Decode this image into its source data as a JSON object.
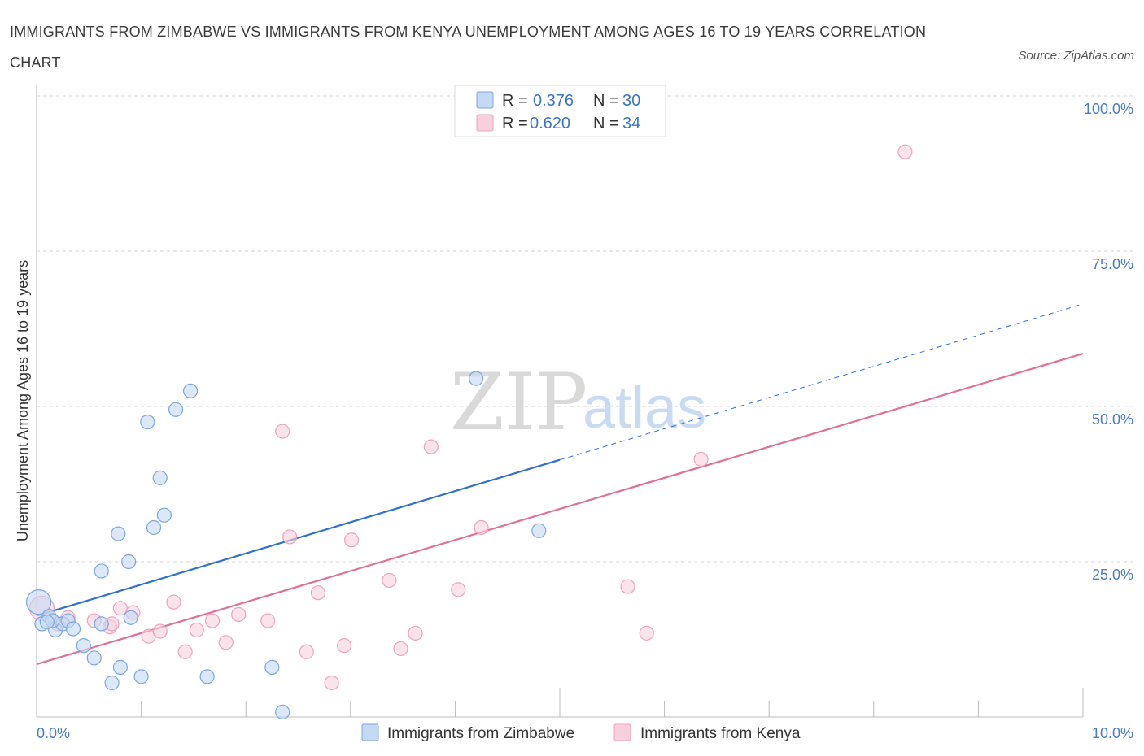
{
  "chart_data": {
    "type": "scatter",
    "title": "IMMIGRANTS FROM ZIMBABWE VS IMMIGRANTS FROM KENYA UNEMPLOYMENT AMONG AGES 16 TO 19 YEARS CORRELATION CHART",
    "source": "Source: ZipAtlas.com",
    "xlabel": "",
    "ylabel": "Unemployment Among Ages 16 to 19 years",
    "xlim": [
      0,
      10
    ],
    "ylim": [
      0,
      100
    ],
    "x_tick_labels": {
      "left": "0.0%",
      "right": "10.0%"
    },
    "y_ticks": [
      {
        "value": 100,
        "label": "100.0%"
      },
      {
        "value": 75,
        "label": "75.0%"
      },
      {
        "value": 50,
        "label": "50.0%"
      },
      {
        "value": 25,
        "label": "25.0%"
      }
    ],
    "legend_top": [
      {
        "series": "Immigrants from Zimbabwe",
        "r_label": "R =",
        "r_value": "0.376",
        "n_label": "N =",
        "n_value": "30"
      },
      {
        "series": "Immigrants from Kenya",
        "r_label": "R =",
        "r_value": "0.620",
        "n_label": "N =",
        "n_value": "34"
      }
    ],
    "series": [
      {
        "name": "Immigrants from Zimbabwe",
        "color": "#7aa7e0",
        "fill": "#c5d9f3",
        "trend": {
          "x0": 0.0,
          "y0": 16.3,
          "x1": 10.0,
          "y1": 66.5,
          "solid_until_x": 5.0,
          "color": "#2f6fd0"
        },
        "points": [
          [
            0.02,
            18.5
          ],
          [
            0.05,
            15.0
          ],
          [
            0.12,
            16.2
          ],
          [
            0.18,
            14.0
          ],
          [
            0.25,
            15.0
          ],
          [
            0.3,
            15.5
          ],
          [
            0.35,
            14.2
          ],
          [
            0.45,
            11.5
          ],
          [
            0.55,
            9.5
          ],
          [
            0.62,
            15.0
          ],
          [
            0.72,
            5.5
          ],
          [
            0.78,
            29.5
          ],
          [
            0.8,
            8.0
          ],
          [
            0.88,
            25.0
          ],
          [
            0.9,
            16.0
          ],
          [
            1.0,
            6.5
          ],
          [
            1.06,
            47.5
          ],
          [
            1.12,
            30.5
          ],
          [
            1.18,
            38.5
          ],
          [
            1.22,
            32.5
          ],
          [
            1.33,
            49.5
          ],
          [
            1.47,
            52.5
          ],
          [
            1.63,
            6.5
          ],
          [
            2.25,
            8.0
          ],
          [
            2.35,
            0.8
          ],
          [
            4.2,
            54.5
          ],
          [
            4.8,
            30.0
          ],
          [
            0.62,
            23.5
          ],
          [
            0.15,
            15.5
          ],
          [
            0.1,
            15.3
          ]
        ]
      },
      {
        "name": "Immigrants from Kenya",
        "color": "#eba3bb",
        "fill": "#f8d0dd",
        "trend": {
          "x0": 0.0,
          "y0": 8.5,
          "x1": 10.0,
          "y1": 58.5,
          "solid_until_x": 10.0,
          "color": "#e0709a"
        },
        "points": [
          [
            0.05,
            17.5
          ],
          [
            0.2,
            15.0
          ],
          [
            0.3,
            16.0
          ],
          [
            0.55,
            15.5
          ],
          [
            0.7,
            14.5
          ],
          [
            0.8,
            17.5
          ],
          [
            0.92,
            16.8
          ],
          [
            1.07,
            13.0
          ],
          [
            1.18,
            13.8
          ],
          [
            1.31,
            18.5
          ],
          [
            1.42,
            10.5
          ],
          [
            1.53,
            14.0
          ],
          [
            1.68,
            15.5
          ],
          [
            1.81,
            12.0
          ],
          [
            1.93,
            16.5
          ],
          [
            2.21,
            15.5
          ],
          [
            2.35,
            46.0
          ],
          [
            2.42,
            29.0
          ],
          [
            2.58,
            10.5
          ],
          [
            2.69,
            20.0
          ],
          [
            2.82,
            5.5
          ],
          [
            2.94,
            11.5
          ],
          [
            3.01,
            28.5
          ],
          [
            3.37,
            22.0
          ],
          [
            3.48,
            11.0
          ],
          [
            3.62,
            13.5
          ],
          [
            3.77,
            43.5
          ],
          [
            4.03,
            20.5
          ],
          [
            4.25,
            30.5
          ],
          [
            5.65,
            21.0
          ],
          [
            5.83,
            13.5
          ],
          [
            6.35,
            41.5
          ],
          [
            8.3,
            91.0
          ],
          [
            0.72,
            15.0
          ]
        ]
      }
    ],
    "bottom_legend": [
      "Immigrants from Zimbabwe",
      "Immigrants from Kenya"
    ],
    "watermark": {
      "zip": "ZIP",
      "atlas": "atlas"
    }
  }
}
